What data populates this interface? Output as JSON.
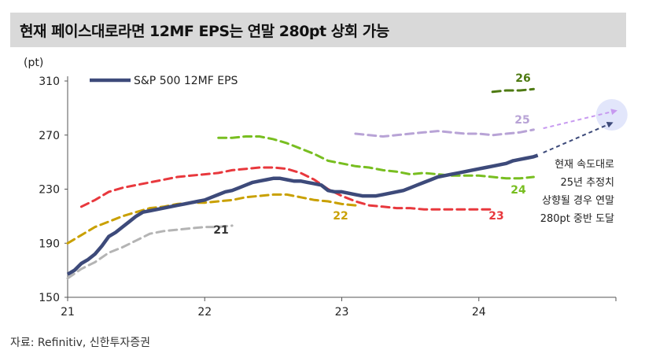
{
  "title": "현재 페이스대로라면 12MF EPS는 연말 280pt 상회 가능",
  "source": "자료: Refinitiv, 신한투자증권",
  "chart_data": {
    "type": "line",
    "yunit": "(pt)",
    "ylim": [
      150,
      310
    ],
    "yticks": [
      150,
      190,
      230,
      270,
      310
    ],
    "xlim": [
      21,
      25
    ],
    "xticks": [
      {
        "value": 21,
        "label": "21"
      },
      {
        "value": 22,
        "label": "22"
      },
      {
        "value": 23,
        "label": "23"
      },
      {
        "value": 24,
        "label": "24"
      }
    ],
    "legend": {
      "label": "S&P 500 12MF EPS",
      "placement": "top-left"
    },
    "main_series": {
      "name": "S&P 500 12MF EPS",
      "color": "#3d4a7a",
      "points": [
        [
          21.0,
          167
        ],
        [
          21.05,
          170
        ],
        [
          21.1,
          175
        ],
        [
          21.15,
          178
        ],
        [
          21.2,
          182
        ],
        [
          21.25,
          188
        ],
        [
          21.3,
          195
        ],
        [
          21.35,
          198
        ],
        [
          21.4,
          202
        ],
        [
          21.45,
          206
        ],
        [
          21.5,
          210
        ],
        [
          21.55,
          213
        ],
        [
          21.6,
          214
        ],
        [
          21.65,
          215
        ],
        [
          21.7,
          216
        ],
        [
          21.75,
          217
        ],
        [
          21.8,
          218
        ],
        [
          21.85,
          219
        ],
        [
          21.9,
          220
        ],
        [
          21.95,
          221
        ],
        [
          22.0,
          222
        ],
        [
          22.05,
          224
        ],
        [
          22.1,
          226
        ],
        [
          22.15,
          228
        ],
        [
          22.2,
          229
        ],
        [
          22.25,
          231
        ],
        [
          22.3,
          233
        ],
        [
          22.35,
          235
        ],
        [
          22.4,
          236
        ],
        [
          22.45,
          237
        ],
        [
          22.5,
          238
        ],
        [
          22.55,
          238
        ],
        [
          22.6,
          237
        ],
        [
          22.65,
          236
        ],
        [
          22.7,
          236
        ],
        [
          22.75,
          235
        ],
        [
          22.8,
          234
        ],
        [
          22.85,
          233
        ],
        [
          22.9,
          229
        ],
        [
          22.95,
          228
        ],
        [
          23.0,
          228
        ],
        [
          23.05,
          227
        ],
        [
          23.1,
          226
        ],
        [
          23.15,
          225
        ],
        [
          23.2,
          225
        ],
        [
          23.25,
          225
        ],
        [
          23.3,
          226
        ],
        [
          23.35,
          227
        ],
        [
          23.4,
          228
        ],
        [
          23.45,
          229
        ],
        [
          23.5,
          231
        ],
        [
          23.55,
          233
        ],
        [
          23.6,
          235
        ],
        [
          23.65,
          237
        ],
        [
          23.7,
          239
        ],
        [
          23.75,
          240
        ],
        [
          23.8,
          241
        ],
        [
          23.85,
          242
        ],
        [
          23.9,
          243
        ],
        [
          23.95,
          244
        ],
        [
          24.0,
          245
        ],
        [
          24.05,
          246
        ],
        [
          24.1,
          247
        ],
        [
          24.15,
          248
        ],
        [
          24.2,
          249
        ],
        [
          24.25,
          251
        ],
        [
          24.3,
          252
        ],
        [
          24.35,
          253
        ],
        [
          24.4,
          254
        ],
        [
          24.43,
          255
        ]
      ]
    },
    "series": [
      {
        "name": "21",
        "color": "#b4b4b4",
        "points": [
          [
            21.0,
            164
          ],
          [
            21.1,
            171
          ],
          [
            21.2,
            176
          ],
          [
            21.3,
            183
          ],
          [
            21.4,
            187
          ],
          [
            21.5,
            192
          ],
          [
            21.6,
            197
          ],
          [
            21.7,
            199
          ],
          [
            21.8,
            200
          ],
          [
            21.9,
            201
          ],
          [
            22.0,
            202
          ],
          [
            22.1,
            202
          ],
          [
            22.2,
            203
          ]
        ]
      },
      {
        "name": "22",
        "color": "#c9a000",
        "points": [
          [
            21.0,
            190
          ],
          [
            21.1,
            196
          ],
          [
            21.2,
            202
          ],
          [
            21.3,
            206
          ],
          [
            21.4,
            210
          ],
          [
            21.5,
            213
          ],
          [
            21.6,
            216
          ],
          [
            21.7,
            217
          ],
          [
            21.8,
            219
          ],
          [
            21.9,
            220
          ],
          [
            22.0,
            220
          ],
          [
            22.1,
            221
          ],
          [
            22.2,
            222
          ],
          [
            22.3,
            224
          ],
          [
            22.4,
            225
          ],
          [
            22.5,
            226
          ],
          [
            22.6,
            226
          ],
          [
            22.7,
            224
          ],
          [
            22.8,
            222
          ],
          [
            22.9,
            221
          ],
          [
            23.0,
            219
          ],
          [
            23.1,
            218
          ]
        ]
      },
      {
        "name": "23",
        "color": "#e8383d",
        "points": [
          [
            21.1,
            217
          ],
          [
            21.2,
            222
          ],
          [
            21.3,
            228
          ],
          [
            21.4,
            231
          ],
          [
            21.5,
            233
          ],
          [
            21.6,
            235
          ],
          [
            21.7,
            237
          ],
          [
            21.8,
            239
          ],
          [
            21.9,
            240
          ],
          [
            22.0,
            241
          ],
          [
            22.1,
            242
          ],
          [
            22.2,
            244
          ],
          [
            22.3,
            245
          ],
          [
            22.4,
            246
          ],
          [
            22.5,
            246
          ],
          [
            22.6,
            245
          ],
          [
            22.7,
            242
          ],
          [
            22.8,
            237
          ],
          [
            22.9,
            230
          ],
          [
            23.0,
            225
          ],
          [
            23.1,
            221
          ],
          [
            23.2,
            218
          ],
          [
            23.3,
            217
          ],
          [
            23.4,
            216
          ],
          [
            23.5,
            216
          ],
          [
            23.6,
            215
          ],
          [
            23.7,
            215
          ],
          [
            23.8,
            215
          ],
          [
            23.9,
            215
          ],
          [
            24.0,
            215
          ],
          [
            24.1,
            215
          ]
        ]
      },
      {
        "name": "24",
        "color": "#78be20",
        "points": [
          [
            22.1,
            268
          ],
          [
            22.2,
            268
          ],
          [
            22.3,
            269
          ],
          [
            22.4,
            269
          ],
          [
            22.5,
            267
          ],
          [
            22.6,
            264
          ],
          [
            22.7,
            260
          ],
          [
            22.8,
            256
          ],
          [
            22.9,
            251
          ],
          [
            23.0,
            249
          ],
          [
            23.1,
            247
          ],
          [
            23.2,
            246
          ],
          [
            23.3,
            244
          ],
          [
            23.4,
            243
          ],
          [
            23.5,
            241
          ],
          [
            23.6,
            242
          ],
          [
            23.7,
            241
          ],
          [
            23.8,
            240
          ],
          [
            23.9,
            240
          ],
          [
            24.0,
            240
          ],
          [
            24.1,
            239
          ],
          [
            24.2,
            238
          ],
          [
            24.3,
            238
          ],
          [
            24.4,
            239
          ]
        ]
      },
      {
        "name": "25",
        "color": "#b8a3d6",
        "points": [
          [
            23.1,
            271
          ],
          [
            23.2,
            270
          ],
          [
            23.3,
            269
          ],
          [
            23.4,
            270
          ],
          [
            23.5,
            271
          ],
          [
            23.6,
            272
          ],
          [
            23.7,
            273
          ],
          [
            23.8,
            272
          ],
          [
            23.9,
            271
          ],
          [
            24.0,
            271
          ],
          [
            24.1,
            270
          ],
          [
            24.2,
            271
          ],
          [
            24.3,
            272
          ],
          [
            24.4,
            274
          ]
        ]
      },
      {
        "name": "26",
        "color": "#4e7a12",
        "points": [
          [
            24.1,
            302
          ],
          [
            24.2,
            303
          ],
          [
            24.3,
            303
          ],
          [
            24.4,
            304
          ]
        ]
      }
    ],
    "projections": [
      {
        "name": "main-projection",
        "color": "#3d4a7a",
        "from": [
          24.47,
          257
        ],
        "to": [
          24.97,
          279
        ]
      },
      {
        "name": "25-projection",
        "color": "#c79af0",
        "from": [
          24.47,
          275
        ],
        "to": [
          25.0,
          288
        ]
      }
    ],
    "target_marker": {
      "x": 24.97,
      "y": 285
    },
    "annotation_lines": [
      "현재 속도대로",
      "25년 추정치",
      "상향될 경우 연말",
      "280pt 중반 도달"
    ]
  }
}
